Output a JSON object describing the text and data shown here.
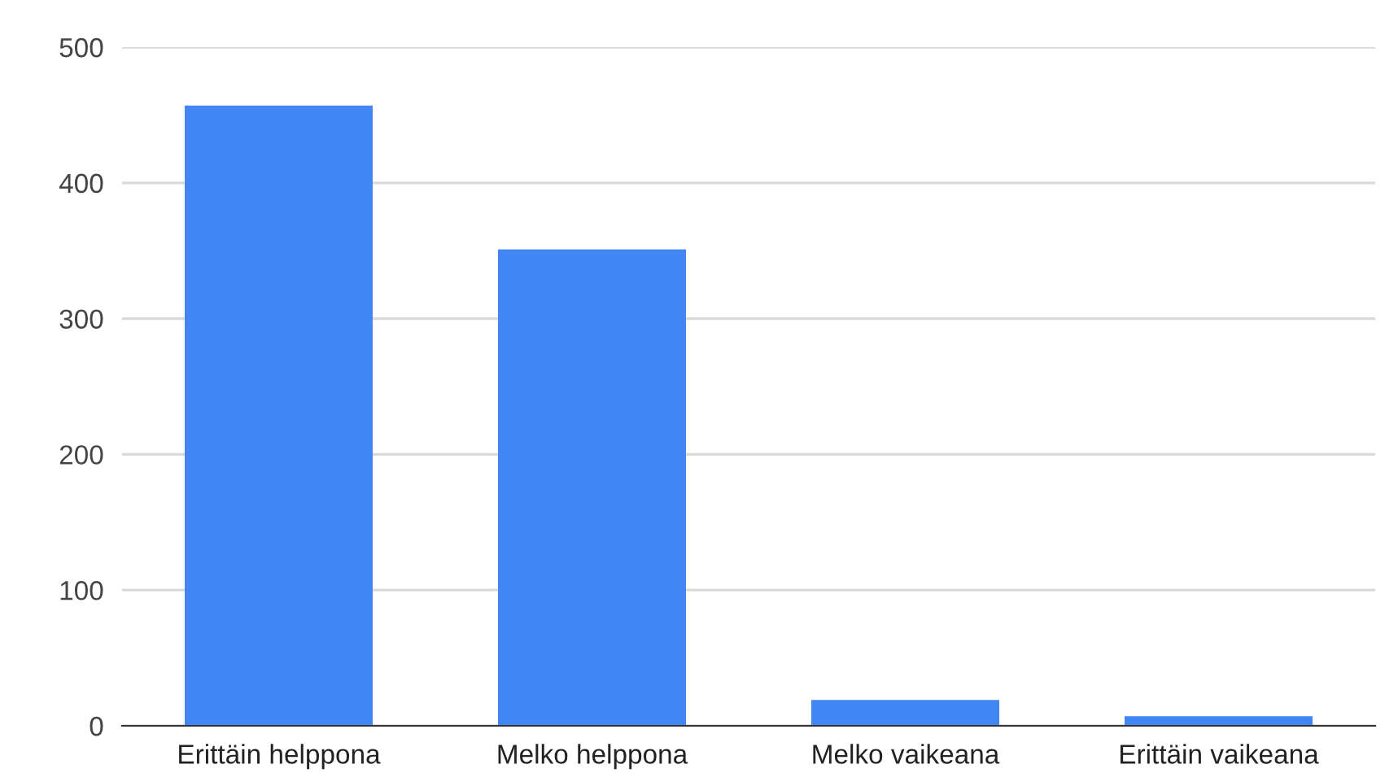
{
  "chart_data": {
    "type": "bar",
    "categories": [
      "Erittäin helppona",
      "Melko helppona",
      "Melko vaikeana",
      "Erittäin vaikeana"
    ],
    "values": [
      457,
      351,
      19,
      7
    ],
    "color": "#4285f4",
    "ylim": [
      0,
      500
    ],
    "yticks": [
      0,
      100,
      200,
      300,
      400,
      500
    ],
    "grid": "y"
  }
}
